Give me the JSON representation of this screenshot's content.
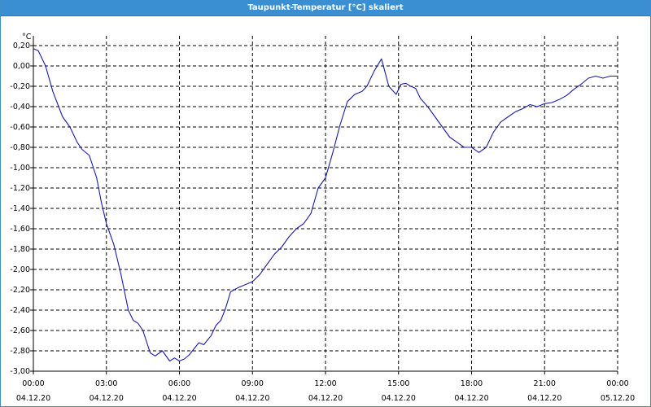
{
  "window": {
    "title": "Taupunkt-Temperatur [°C] skaliert"
  },
  "chart_data": {
    "type": "line",
    "title": "Taupunkt-Temperatur [°C] skaliert",
    "ylabel": "°C",
    "xlabel": "",
    "ylim": [
      -3.0,
      0.2
    ],
    "yticks": [
      "0,20",
      "0,00",
      "-0,20",
      "-0,40",
      "-0,60",
      "-0,80",
      "-1,00",
      "-1,20",
      "-1,40",
      "-1,60",
      "-1,80",
      "-2,00",
      "-2,20",
      "-2,40",
      "-2,60",
      "-2,80",
      "-3,00"
    ],
    "ytick_values": [
      0.2,
      0.0,
      -0.2,
      -0.4,
      -0.6,
      -0.8,
      -1.0,
      -1.2,
      -1.4,
      -1.6,
      -1.8,
      -2.0,
      -2.2,
      -2.4,
      -2.6,
      -2.8,
      -3.0
    ],
    "xlim_hours": [
      0,
      24
    ],
    "xticks": [
      {
        "time": "00:00",
        "date": "04.12.20",
        "hour": 0
      },
      {
        "time": "03:00",
        "date": "04.12.20",
        "hour": 3
      },
      {
        "time": "06:00",
        "date": "04.12.20",
        "hour": 6
      },
      {
        "time": "09:00",
        "date": "04.12.20",
        "hour": 9
      },
      {
        "time": "12:00",
        "date": "04.12.20",
        "hour": 12
      },
      {
        "time": "15:00",
        "date": "04.12.20",
        "hour": 15
      },
      {
        "time": "18:00",
        "date": "04.12.20",
        "hour": 18
      },
      {
        "time": "21:00",
        "date": "04.12.20",
        "hour": 21
      },
      {
        "time": "00:00",
        "date": "05.12.20",
        "hour": 24
      }
    ],
    "grid": true,
    "line_color": "#1a1aa8",
    "series": [
      {
        "x": [
          0,
          0.2,
          0.5,
          0.8,
          1.2,
          1.5,
          1.8,
          2.0,
          2.3,
          2.6,
          2.8,
          3.0,
          3.3,
          3.6,
          3.9,
          4.1,
          4.3,
          4.5,
          4.8,
          5.0,
          5.3,
          5.6,
          5.8,
          6.0,
          6.2,
          6.4,
          6.6,
          6.8,
          7.0,
          7.3,
          7.5,
          7.7,
          7.9,
          8.1,
          8.4,
          8.7,
          9.0,
          9.3,
          9.6,
          9.9,
          10.2,
          10.5,
          10.8,
          11.1,
          11.4,
          11.7,
          12.0,
          12.3,
          12.6,
          12.9,
          13.2,
          13.5,
          13.7,
          14.0,
          14.3,
          14.6,
          14.9,
          15.1,
          15.3,
          15.5,
          15.7,
          15.9,
          16.2,
          16.5,
          16.8,
          17.1,
          17.4,
          17.7,
          18.0,
          18.3,
          18.6,
          18.9,
          19.2,
          19.5,
          19.8,
          20.1,
          20.4,
          20.7,
          21.0,
          21.3,
          21.6,
          21.9,
          22.2,
          22.5,
          22.8,
          23.1,
          23.4,
          23.7,
          24.0
        ],
        "y": [
          0.17,
          0.15,
          0.0,
          -0.25,
          -0.5,
          -0.6,
          -0.75,
          -0.82,
          -0.88,
          -1.1,
          -1.35,
          -1.55,
          -1.75,
          -2.05,
          -2.4,
          -2.5,
          -2.53,
          -2.6,
          -2.82,
          -2.85,
          -2.8,
          -2.9,
          -2.87,
          -2.9,
          -2.88,
          -2.84,
          -2.78,
          -2.72,
          -2.74,
          -2.65,
          -2.55,
          -2.5,
          -2.38,
          -2.22,
          -2.18,
          -2.15,
          -2.12,
          -2.05,
          -1.95,
          -1.85,
          -1.78,
          -1.68,
          -1.6,
          -1.55,
          -1.45,
          -1.2,
          -1.1,
          -0.85,
          -0.58,
          -0.35,
          -0.28,
          -0.25,
          -0.2,
          -0.05,
          0.07,
          -0.2,
          -0.28,
          -0.18,
          -0.17,
          -0.2,
          -0.22,
          -0.32,
          -0.4,
          -0.5,
          -0.6,
          -0.7,
          -0.75,
          -0.8,
          -0.8,
          -0.85,
          -0.8,
          -0.65,
          -0.55,
          -0.5,
          -0.45,
          -0.42,
          -0.38,
          -0.4,
          -0.37,
          -0.36,
          -0.33,
          -0.29,
          -0.23,
          -0.18,
          -0.12,
          -0.1,
          -0.12,
          -0.1,
          -0.1
        ]
      }
    ]
  }
}
